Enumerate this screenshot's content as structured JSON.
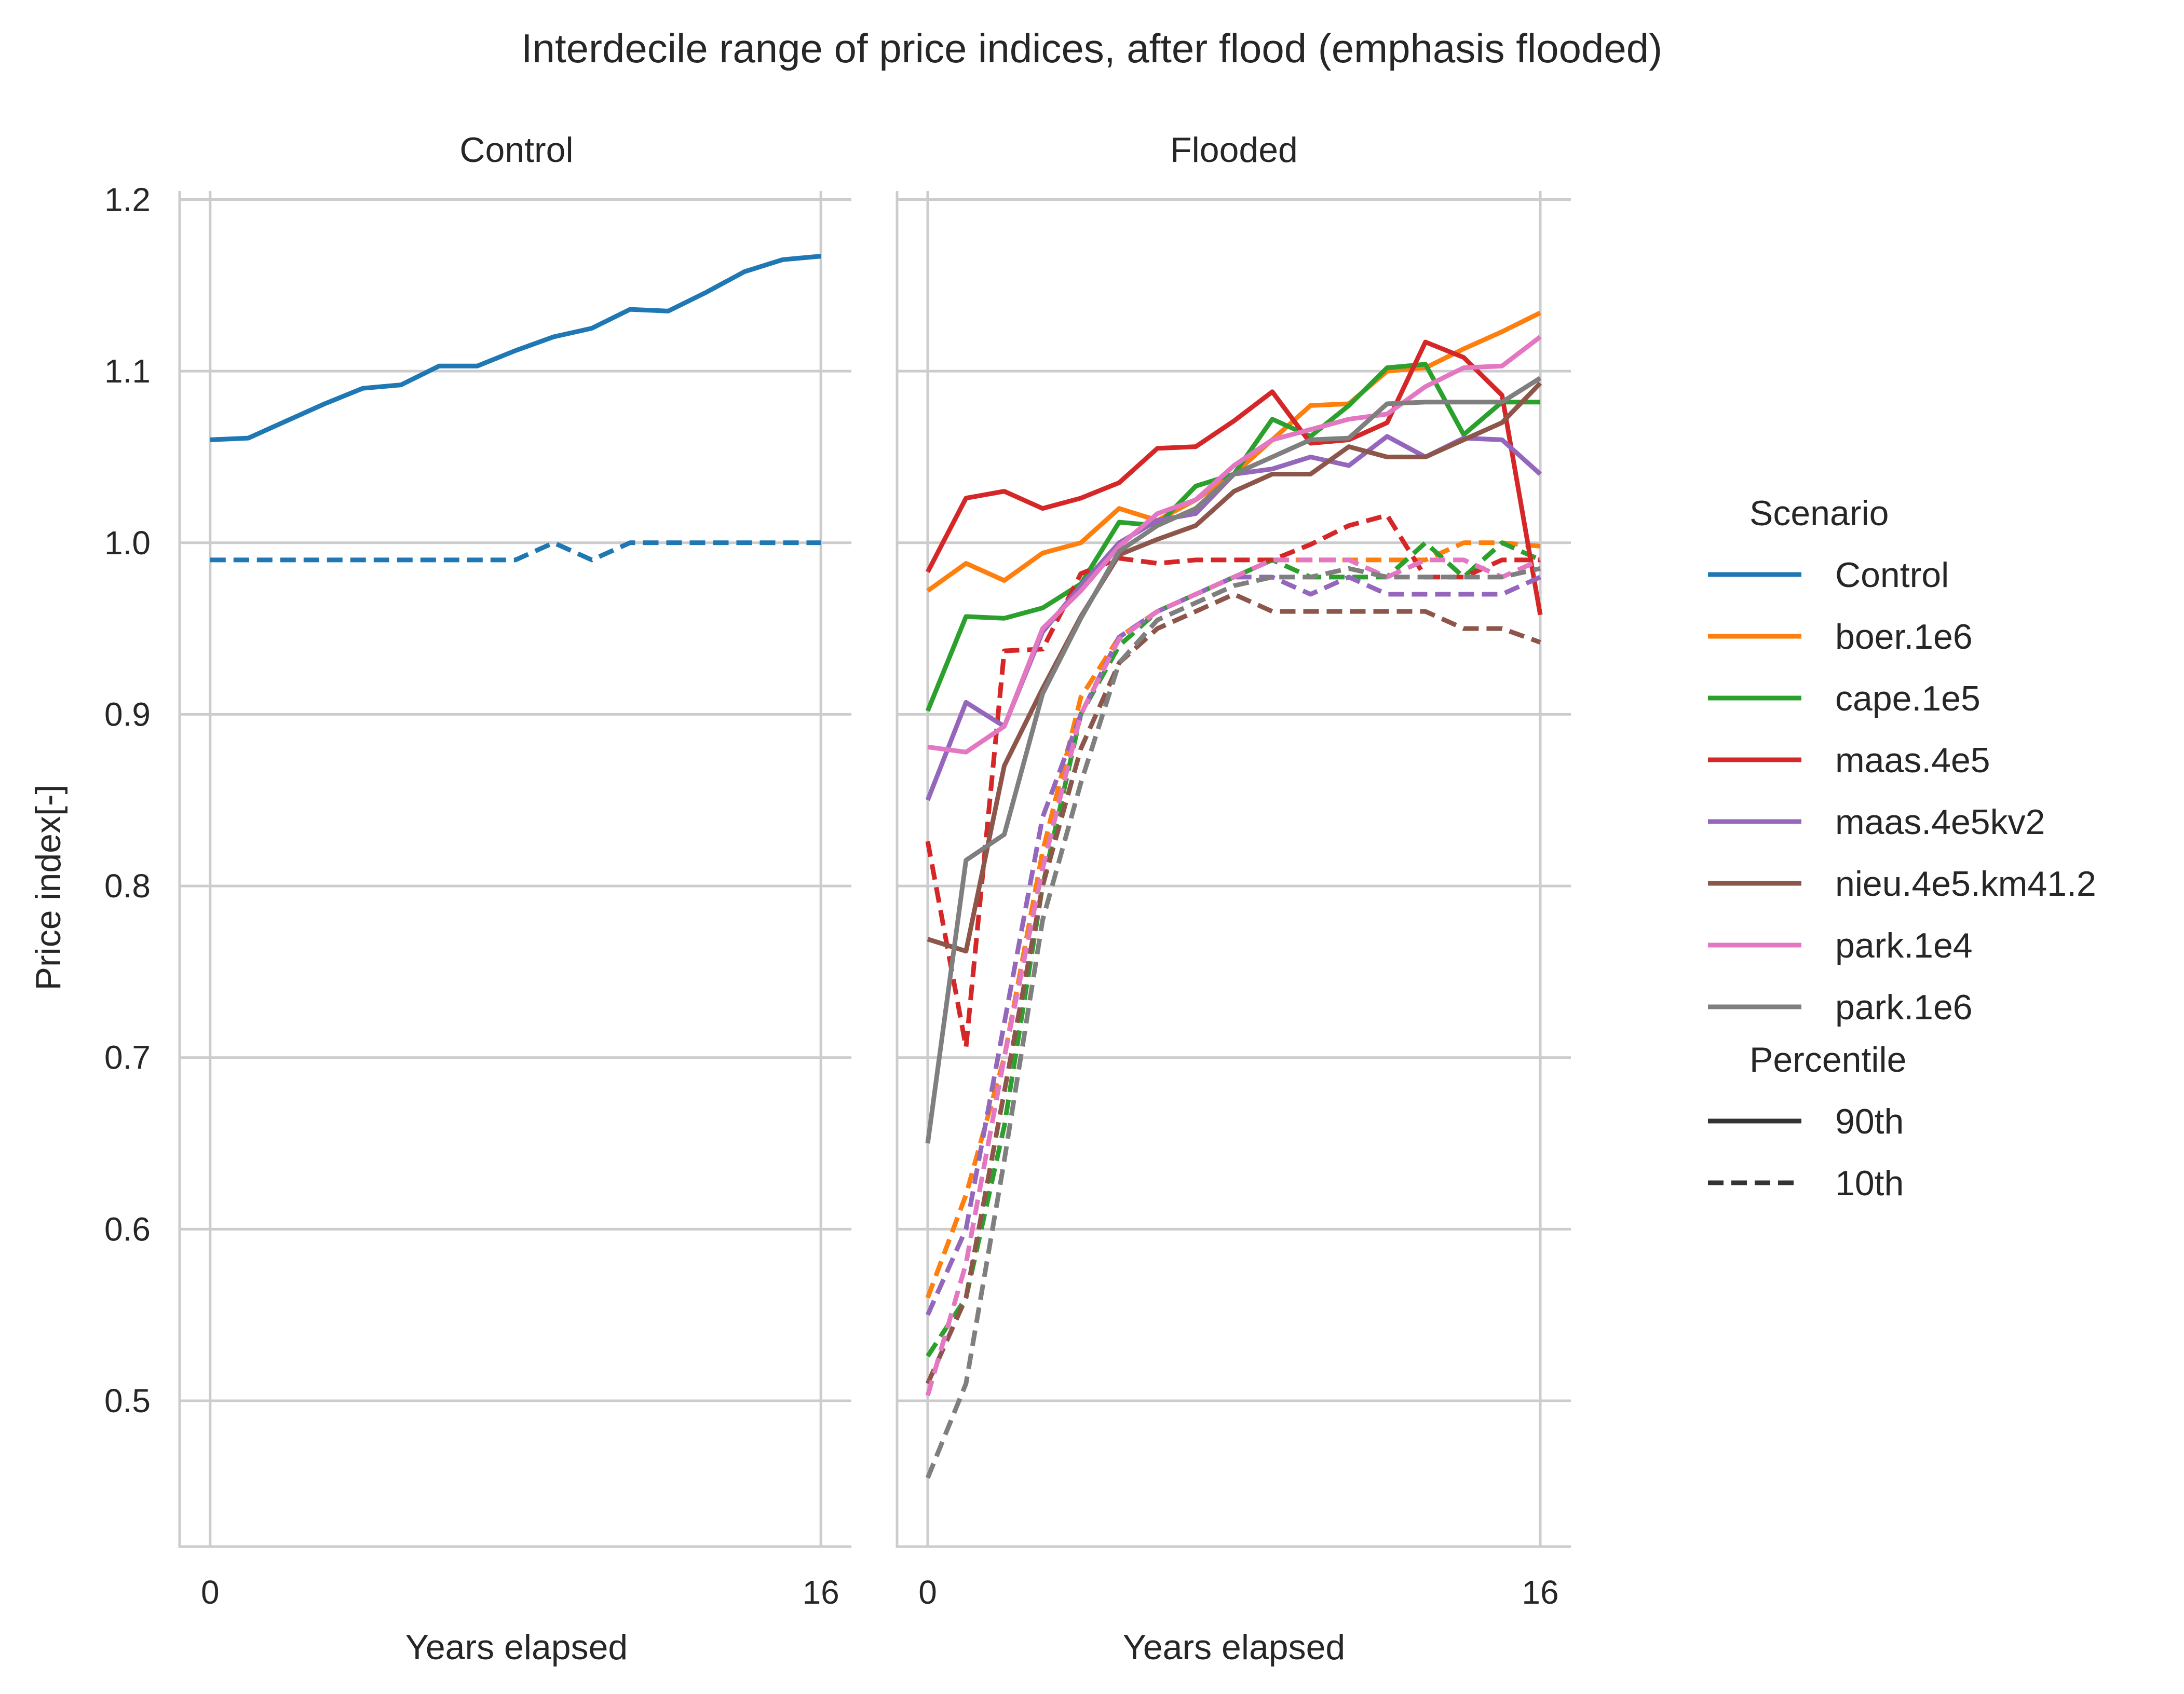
{
  "chart_data": {
    "type": "line",
    "title": "Interdecile range of price indices, after flood (emphasis flooded)",
    "ylabel": "Price index[-]",
    "ylim": [
      0.415,
      1.205
    ],
    "yticks": [
      0.5,
      0.6,
      0.7,
      0.8,
      0.9,
      1.0,
      1.1,
      1.2
    ],
    "ytick_labels": [
      "0.5",
      "0.6",
      "0.7",
      "0.8",
      "0.9",
      "1.0",
      "1.1",
      "1.2"
    ],
    "xlim": [
      -0.8,
      16.8
    ],
    "xticks": [
      0,
      16
    ],
    "xtick_labels": [
      "0",
      "16"
    ],
    "grid": true,
    "legend_position": "right",
    "legend": {
      "scenario_title": "Scenario",
      "percentile_title": "Percentile",
      "percentiles": [
        {
          "label": "90th",
          "dash": "solid"
        },
        {
          "label": "10th",
          "dash": "dashed"
        }
      ]
    },
    "scenarios": [
      {
        "name": "Control",
        "color": "#1f77b4"
      },
      {
        "name": "boer.1e6",
        "color": "#ff7f0e"
      },
      {
        "name": "cape.1e5",
        "color": "#2ca02c"
      },
      {
        "name": "maas.4e5",
        "color": "#d62728"
      },
      {
        "name": "maas.4e5kv2",
        "color": "#9467bd"
      },
      {
        "name": "nieu.4e5.km41.2",
        "color": "#8c564b"
      },
      {
        "name": "park.1e4",
        "color": "#e377c2"
      },
      {
        "name": "park.1e6",
        "color": "#7f7f7f"
      }
    ],
    "x": [
      0,
      1,
      2,
      3,
      4,
      5,
      6,
      7,
      8,
      9,
      10,
      11,
      12,
      13,
      14,
      15,
      16
    ],
    "panels": [
      {
        "title": "Control",
        "xlabel": "Years elapsed",
        "series": [
          {
            "scenario": "Control",
            "percentile": "90th",
            "values": [
              1.06,
              1.061,
              1.071,
              1.081,
              1.09,
              1.092,
              1.103,
              1.103,
              1.112,
              1.12,
              1.125,
              1.136,
              1.135,
              1.146,
              1.158,
              1.165,
              1.167
            ]
          },
          {
            "scenario": "Control",
            "percentile": "10th",
            "values": [
              0.99,
              0.99,
              0.99,
              0.99,
              0.99,
              0.99,
              0.99,
              0.99,
              0.99,
              1.0,
              0.99,
              1.0,
              1.0,
              1.0,
              1.0,
              1.0,
              1.0
            ]
          }
        ]
      },
      {
        "title": "Flooded",
        "xlabel": "Years elapsed",
        "series": [
          {
            "scenario": "boer.1e6",
            "percentile": "90th",
            "values": [
              0.972,
              0.988,
              0.978,
              0.994,
              1.0,
              1.02,
              1.013,
              1.025,
              1.04,
              1.06,
              1.08,
              1.081,
              1.1,
              1.102,
              1.113,
              1.123,
              1.134
            ]
          },
          {
            "scenario": "boer.1e6",
            "percentile": "10th",
            "values": [
              0.56,
              0.62,
              0.7,
              0.82,
              0.91,
              0.945,
              0.96,
              0.97,
              0.98,
              0.99,
              0.99,
              0.99,
              0.99,
              0.99,
              1.0,
              1.0,
              0.998
            ]
          },
          {
            "scenario": "cape.1e5",
            "percentile": "90th",
            "values": [
              0.902,
              0.957,
              0.956,
              0.962,
              0.976,
              1.012,
              1.01,
              1.033,
              1.04,
              1.072,
              1.062,
              1.08,
              1.102,
              1.104,
              1.063,
              1.082,
              1.082
            ]
          },
          {
            "scenario": "cape.1e5",
            "percentile": "10th",
            "values": [
              0.526,
              0.56,
              0.66,
              0.8,
              0.9,
              0.94,
              0.96,
              0.97,
              0.98,
              0.99,
              0.98,
              0.98,
              0.98,
              1.0,
              0.98,
              1.0,
              0.99
            ]
          },
          {
            "scenario": "maas.4e5",
            "percentile": "90th",
            "values": [
              0.983,
              1.026,
              1.03,
              1.02,
              1.026,
              1.035,
              1.055,
              1.056,
              1.071,
              1.088,
              1.058,
              1.06,
              1.07,
              1.117,
              1.108,
              1.086,
              0.958
            ]
          },
          {
            "scenario": "maas.4e5",
            "percentile": "10th",
            "values": [
              0.826,
              0.706,
              0.937,
              0.938,
              0.982,
              0.991,
              0.988,
              0.99,
              0.99,
              0.99,
              0.999,
              1.01,
              1.016,
              0.98,
              0.98,
              0.99,
              0.99
            ]
          },
          {
            "scenario": "maas.4e5kv2",
            "percentile": "90th",
            "values": [
              0.85,
              0.907,
              0.893,
              0.948,
              0.975,
              1.0,
              1.013,
              1.017,
              1.04,
              1.043,
              1.05,
              1.045,
              1.062,
              1.05,
              1.061,
              1.06,
              1.04
            ]
          },
          {
            "scenario": "maas.4e5kv2",
            "percentile": "10th",
            "values": [
              0.55,
              0.6,
              0.72,
              0.84,
              0.9,
              0.945,
              0.96,
              0.97,
              0.98,
              0.98,
              0.97,
              0.98,
              0.97,
              0.97,
              0.97,
              0.97,
              0.98
            ]
          },
          {
            "scenario": "nieu.4e5.km41.2",
            "percentile": "90th",
            "values": [
              0.769,
              0.762,
              0.87,
              0.915,
              0.957,
              0.993,
              1.002,
              1.01,
              1.03,
              1.04,
              1.04,
              1.056,
              1.05,
              1.05,
              1.06,
              1.07,
              1.093
            ]
          },
          {
            "scenario": "nieu.4e5.km41.2",
            "percentile": "10th",
            "values": [
              0.51,
              0.56,
              0.68,
              0.8,
              0.88,
              0.93,
              0.95,
              0.96,
              0.97,
              0.96,
              0.96,
              0.96,
              0.96,
              0.96,
              0.95,
              0.95,
              0.942
            ]
          },
          {
            "scenario": "park.1e4",
            "percentile": "90th",
            "values": [
              0.881,
              0.878,
              0.893,
              0.95,
              0.972,
              0.998,
              1.017,
              1.025,
              1.045,
              1.06,
              1.066,
              1.072,
              1.075,
              1.091,
              1.102,
              1.103,
              1.12
            ]
          },
          {
            "scenario": "park.1e4",
            "percentile": "10th",
            "values": [
              0.503,
              0.58,
              0.7,
              0.81,
              0.9,
              0.944,
              0.96,
              0.97,
              0.98,
              0.99,
              0.99,
              0.99,
              0.98,
              0.99,
              0.99,
              0.98,
              0.99
            ]
          },
          {
            "scenario": "park.1e6",
            "percentile": "90th",
            "values": [
              0.65,
              0.815,
              0.83,
              0.912,
              0.956,
              0.995,
              1.01,
              1.02,
              1.04,
              1.05,
              1.06,
              1.061,
              1.081,
              1.082,
              1.082,
              1.082,
              1.096
            ]
          },
          {
            "scenario": "park.1e6",
            "percentile": "10th",
            "values": [
              0.455,
              0.51,
              0.64,
              0.78,
              0.86,
              0.93,
              0.955,
              0.965,
              0.975,
              0.98,
              0.98,
              0.985,
              0.98,
              0.98,
              0.98,
              0.98,
              0.985
            ]
          }
        ]
      }
    ]
  }
}
